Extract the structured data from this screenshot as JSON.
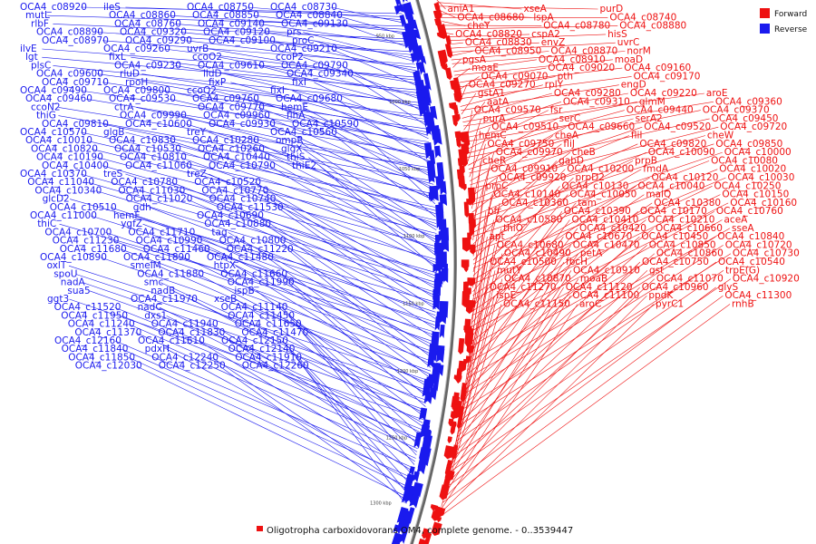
{
  "caption": "Oligotropha carboxidovorans OM4, complete genome. - 0..3539447",
  "legend": [
    {
      "name": "Forward",
      "color": "#ee1111"
    },
    {
      "name": "Reverse",
      "color": "#1a1aee"
    }
  ],
  "scale_ticks": [
    "950 kbp",
    "1000 kbp",
    "1050 kbp",
    "1100 kbp",
    "1150 kbp",
    "1200 kbp",
    "1250 kbp",
    "1300 kbp"
  ],
  "reverse_labels": [
    "OCA4_c08920",
    "ileS",
    "OCA4_c08750",
    "OCA4_c08730",
    "mutL",
    "OCA4_c08860",
    "OCA4_c08850",
    "OCA4_c08840",
    "rlbF",
    "OCA4_c08760",
    "OCA4_c09140",
    "OCA4_c09130",
    "OCA4_c08890",
    "OCA4_c09320",
    "OCA4_c09120",
    "prs",
    "OCA4_c08970",
    "OCA4_c09290",
    "OCA4_c09100",
    "proC",
    "ilvE",
    "OCA4_c09260",
    "uvrB",
    "OCA4_c09210",
    "lgt",
    "fixL",
    "ccoO2",
    "ccoP2",
    "plsC",
    "OCA4_c09230",
    "OCA4_c09610",
    "OCA4_c09790",
    "OCA4_c09600",
    "rluD",
    "lldD",
    "OCA4_c09340",
    "OCA4_c09710",
    "rpoH",
    "fixP",
    "fixI",
    "OCA4_c09490",
    "OCA4_c09800",
    "ccoQ2",
    "fixI",
    "OCA4_c09460",
    "OCA4_c09530",
    "OCA4_c09760",
    "OCA4_c09680",
    "ccoN2",
    "ctrA",
    "OCA4_c09770",
    "hemE",
    "thiG",
    "OCA4_c09990",
    "OCA4_c09960",
    "flhA",
    "OCA4_c09810",
    "OCA4_c10600",
    "OCA4_c09930",
    "OCA4_c10590",
    "OCA4_c10570",
    "glgB",
    "treY",
    "OCA4_c10560",
    "OCA4_c10010",
    "OCA4_c10830",
    "OCA4_c10280",
    "ompR",
    "OCA4_c10820",
    "OCA4_c10530",
    "OCA4_c10260",
    "glgX",
    "OCA4_c10190",
    "OCA4_c10810",
    "OCA4_c10440",
    "thiS",
    "OCA4_c10400",
    "OCA4_c11060",
    "OCA4_c10790",
    "thiE2",
    "OCA4_c10370",
    "treS",
    "treZ",
    "OCA4_c11040",
    "OCA4_c10780",
    "OCA4_c10520",
    "OCA4_c10340",
    "OCA4_c11030",
    "OCA4_c10770",
    "glcD2",
    "OCA4_c11020",
    "OCA4_c10740",
    "OCA4_c10510",
    "gdh",
    "OCA4_c11530",
    "OCA4_c11000",
    "hemF",
    "OCA4_c10690",
    "thiC",
    "ygfZ",
    "OCA4_c10880",
    "OCA4_c10700",
    "OCA4_c11710",
    "tag",
    "OCA4_c11230",
    "OCA4_c10990",
    "OCA4_c10800",
    "OCA4_c11680",
    "OCA4_c11460",
    "OCA4_c11220",
    "OCA4_c10890",
    "OCA4_c11890",
    "OCA4_c11480",
    "oxlT",
    "smelM",
    "htpX",
    "spoU",
    "OCA4_c11880",
    "OCA4_c11660",
    "nadA",
    "smc",
    "OCA4_c11990",
    "sua5",
    "nadB",
    "ispB",
    "ggt3",
    "OCA4_c11970",
    "xseB",
    "OCA4_c11520",
    "nadC",
    "OCA4_c11140",
    "OCA4_c11950",
    "dxs1",
    "OCA4_c11450",
    "OCA4_c11240",
    "OCA4_c11940",
    "OCA4_c11650",
    "OCA4_c11370",
    "OCA4_c11830",
    "OCA4_c11470",
    "OCA4_c12160",
    "OCA4_c11610",
    "OCA4_c12150",
    "OCA4_c11840",
    "pdxH",
    "OCA4_c12140",
    "OCA4_c11850",
    "OCA4_c12240",
    "OCA4_c11910",
    "OCA4_c12030",
    "OCA4_c12250",
    "OCA4_c12260"
  ],
  "forward_labels": [
    "aniA1",
    "xseA",
    "purD",
    "OCA4_c08680",
    "lspA",
    "OCA4_c08740",
    "cheY",
    "OCA4_c08780",
    "OCA4_c08880",
    "OCA4_c08820",
    "cspA2",
    "hisS",
    "OCA4_c08830",
    "envZ",
    "uvrC",
    "OCA4_c08950",
    "OCA4_c08870",
    "norM",
    "pgsA",
    "OCA4_c08910",
    "moaD",
    "moaE",
    "OCA4_c09020",
    "OCA4_c09160",
    "OCA4_c09070",
    "pth",
    "OCA4_c09170",
    "OCA4_c09270",
    "rplY",
    "engD",
    "gstA1",
    "OCA4_c09280",
    "OCA4_c09220",
    "aroE",
    "aatA",
    "OCA4_c09310",
    "glmM",
    "OCA4_c09360",
    "OCA4_c09570",
    "fsr",
    "OCA4_c09440",
    "OCA4_c09370",
    "purA",
    "serC",
    "serA2",
    "OCA4_c09450",
    "OCA4_c09510",
    "OCA4_c09660",
    "OCA4_c09520",
    "OCA4_c09720",
    "hemC",
    "cheA",
    "fliI",
    "cheW",
    "OCA4_c09750",
    "fliJ",
    "OCA4_c09820",
    "OCA4_c09850",
    "OCA4_c09970",
    "cheB",
    "OCA4_c10090",
    "OCA4_c10000",
    "cheR",
    "gabD",
    "prpB",
    "OCA4_c10080",
    "OCA4_c09910",
    "OCA4_c10200",
    "fmdA",
    "OCA4_c10020",
    "OCA4_c09920",
    "prpD2",
    "OCA4_c10120",
    "OCA4_c10030",
    "prpC",
    "OCA4_c10130",
    "OCA4_c10040",
    "OCA4_c10250",
    "OCA4_c10140",
    "OCA4_c10050",
    "malQ",
    "OCA4_c10150",
    "OCA4_c10360",
    "tam",
    "OCA4_c10380",
    "OCA4_c10160",
    "bfr",
    "OCA4_c10390",
    "OCA4_c10170",
    "OCA4_c10760",
    "OCA4_c10580",
    "OCA4_c10410",
    "OCA4_c10210",
    "aceA",
    "thiO",
    "OCA4_c10420",
    "OCA4_c10660",
    "sseA",
    "apt",
    "OCA4_c10670",
    "OCA4_c10450",
    "OCA4_c10840",
    "OCA4_c10680",
    "OCA4_c10470",
    "OCA4_c10850",
    "OCA4_c10720",
    "OCA4_c10490",
    "petA",
    "OCA4_c10860",
    "OCA4_c10730",
    "OCA4_c10500",
    "fbcH",
    "OCA4_c10750",
    "OCA4_c10540",
    "mutY",
    "OCA4_c10910",
    "gst",
    "trpE(G)",
    "OCA4_c10870",
    "moaB",
    "OCA4_c11070",
    "OCA4_c10920",
    "OCA4_c11270",
    "OCA4_c11120",
    "OCA4_c10960",
    "glyS",
    "ispE",
    "OCA4_c11100",
    "ppdK",
    "OCA4_c11300",
    "OCA4_c11150",
    "aroC",
    "pyrC1",
    "rnhB"
  ]
}
